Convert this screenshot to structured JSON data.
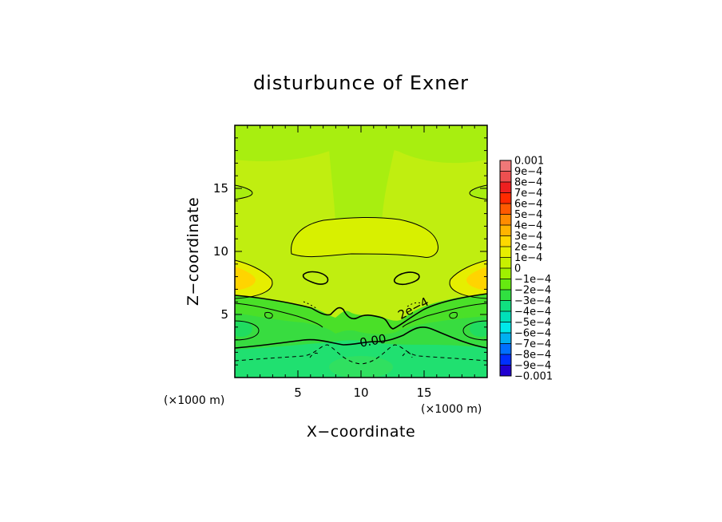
{
  "chart_data": {
    "type": "heatmap",
    "title": "disturbunce of Exner",
    "xlabel": "X−coordinate",
    "ylabel": "Z−coordinate",
    "x_unit_label": "(×1000 m)",
    "y_unit_label": "(×1000 m)",
    "xlim": [
      0,
      20
    ],
    "ylim": [
      0,
      20
    ],
    "x_ticks": [
      {
        "value": 5,
        "label": "5"
      },
      {
        "value": 10,
        "label": "10"
      },
      {
        "value": 15,
        "label": "15"
      }
    ],
    "y_ticks": [
      {
        "value": 5,
        "label": "5"
      },
      {
        "value": 10,
        "label": "10"
      },
      {
        "value": 15,
        "label": "15"
      }
    ],
    "contour_labels": [
      {
        "text": "2e−4",
        "x": 14.3,
        "z": 5.2,
        "angle": -28
      },
      {
        "text": "0.00",
        "x": 11.0,
        "z": 2.6,
        "angle": -10
      }
    ],
    "colorbar": {
      "levels": [
        {
          "label": "0.001",
          "color": "#f07878"
        },
        {
          "label": "9e−4",
          "color": "#ee5050"
        },
        {
          "label": "8e−4",
          "color": "#ee2020"
        },
        {
          "label": "7e−4",
          "color": "#ff2a00"
        },
        {
          "label": "6e−4",
          "color": "#ff5a00"
        },
        {
          "label": "5e−4",
          "color": "#ff8c00"
        },
        {
          "label": "4e−4",
          "color": "#ffb400"
        },
        {
          "label": "3e−4",
          "color": "#ffd800"
        },
        {
          "label": "2e−4",
          "color": "#e8ee00"
        },
        {
          "label": "1e−4",
          "color": "#c8f000"
        },
        {
          "label": "0",
          "color": "#a0f000"
        },
        {
          "label": "−1e−4",
          "color": "#66ea10"
        },
        {
          "label": "−2e−4",
          "color": "#30e040"
        },
        {
          "label": "−3e−4",
          "color": "#10e080"
        },
        {
          "label": "−4e−4",
          "color": "#00e0b8"
        },
        {
          "label": "−5e−4",
          "color": "#00e8e8"
        },
        {
          "label": "−6e−4",
          "color": "#00b0f0"
        },
        {
          "label": "−7e−4",
          "color": "#0070ff"
        },
        {
          "label": "−8e−4",
          "color": "#0030ff"
        },
        {
          "label": "−9e−4",
          "color": "#2000d0"
        },
        {
          "label": "−0.001",
          "color": "#6a00b0"
        }
      ]
    }
  }
}
